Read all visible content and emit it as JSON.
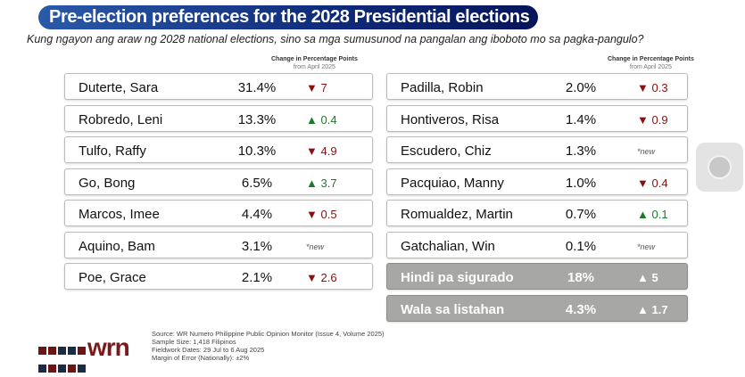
{
  "title": "Pre-election preferences for the 2028 Presidential elections",
  "subtitle": "Kung ngayon ang araw ng 2028 national elections, sino sa mga sumusunod na pangalan ang iboboto mo sa pagka-pangulo?",
  "change_header": {
    "line1": "Change in Percentage Points",
    "line2": "from April 2025"
  },
  "colors": {
    "title_bg": "#0e2a7a",
    "down": "#8a1010",
    "up": "#1a7a2a",
    "gray_row": "#a7a7a5"
  },
  "left": [
    {
      "name": "Duterte, Sara",
      "pct": "31.4%",
      "change": "▼ 7",
      "dir": "down"
    },
    {
      "name": "Robredo, Leni",
      "pct": "13.3%",
      "change": "▲ 0.4",
      "dir": "up"
    },
    {
      "name": "Tulfo, Raffy",
      "pct": "10.3%",
      "change": "▼ 4.9",
      "dir": "down"
    },
    {
      "name": "Go, Bong",
      "pct": "6.5%",
      "change": "▲ 3.7",
      "dir": "up"
    },
    {
      "name": "Marcos, Imee",
      "pct": "4.4%",
      "change": "▼ 0.5",
      "dir": "down"
    },
    {
      "name": "Aquino, Bam",
      "pct": "3.1%",
      "change": "*new",
      "dir": "new"
    },
    {
      "name": "Poe, Grace",
      "pct": "2.1%",
      "change": "▼ 2.6",
      "dir": "down"
    }
  ],
  "right": [
    {
      "name": "Padilla, Robin",
      "pct": "2.0%",
      "change": "▼ 0.3",
      "dir": "down"
    },
    {
      "name": "Hontiveros, Risa",
      "pct": "1.4%",
      "change": "▼ 0.9",
      "dir": "down"
    },
    {
      "name": "Escudero, Chiz",
      "pct": "1.3%",
      "change": "*new",
      "dir": "new"
    },
    {
      "name": "Pacquiao, Manny",
      "pct": "1.0%",
      "change": "▼ 0.4",
      "dir": "down"
    },
    {
      "name": "Romualdez, Martin",
      "pct": "0.7%",
      "change": "▲ 0.1",
      "dir": "up"
    },
    {
      "name": "Gatchalian, Win",
      "pct": "0.1%",
      "change": "*new",
      "dir": "new"
    },
    {
      "name": "Hindi pa sigurado",
      "pct": "18%",
      "change": "▲ 5",
      "dir": "gray"
    },
    {
      "name": "Wala sa listahan",
      "pct": "4.3%",
      "change": "▲ 1.7",
      "dir": "gray"
    }
  ],
  "logo": "wrn",
  "source": [
    "Source: WR Numero Philippine Public Opinion Monitor (Issue 4, Volume 2025)",
    "Sample Size: 1,418 Filipinos",
    "Fieldwork Dates: 29 Jul to 6 Aug 2025",
    "Margin of Error (Nationally): ±2%"
  ]
}
